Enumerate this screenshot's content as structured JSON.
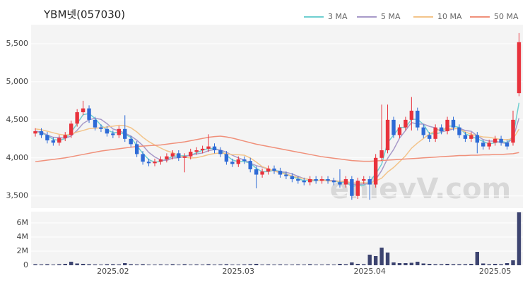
{
  "chart_data": [
    {
      "type": "candlestick",
      "title": "YBM넷(057030)",
      "watermark": "enievV.com",
      "up_color": "#e8323c",
      "down_color": "#2e6bd6",
      "grid": true,
      "ylim": [
        3340,
        5750
      ],
      "yticks": [
        {
          "value": 3500,
          "label": "3,500"
        },
        {
          "value": 4000,
          "label": "4,000"
        },
        {
          "value": 4500,
          "label": "4,500"
        },
        {
          "value": 5000,
          "label": "5,000"
        },
        {
          "value": 5500,
          "label": "5,500"
        }
      ],
      "open": [
        4320,
        4350,
        4300,
        4230,
        4200,
        4260,
        4300,
        4450,
        4600,
        4650,
        4500,
        4400,
        4380,
        4320,
        4300,
        4380,
        4250,
        4180,
        4050,
        3950,
        3930,
        3950,
        3980,
        4020,
        4060,
        4000,
        4020,
        4080,
        4100,
        4120,
        4150,
        4100,
        4050,
        3950,
        3920,
        3980,
        3960,
        3850,
        3780,
        3820,
        3860,
        3830,
        3780,
        3760,
        3720,
        3700,
        3680,
        3720,
        3700,
        3720,
        3700,
        3680,
        3650,
        3720,
        3500,
        3700,
        3720,
        3650,
        4000,
        4100,
        4500,
        4300,
        4400,
        4500,
        4620,
        4400,
        4300,
        4250,
        4400,
        4350,
        4500,
        4400,
        4300,
        4250,
        4300,
        4200,
        4150,
        4200,
        4250,
        4200,
        4200,
        4850
      ],
      "high": [
        4390,
        4390,
        4340,
        4270,
        4300,
        4340,
        4490,
        4640,
        4750,
        4690,
        4540,
        4440,
        4420,
        4360,
        4420,
        4560,
        4290,
        4220,
        4090,
        3990,
        3990,
        4020,
        4060,
        4100,
        4100,
        4060,
        4120,
        4140,
        4160,
        4310,
        4190,
        4140,
        4090,
        3990,
        4020,
        4020,
        4000,
        3890,
        3860,
        3900,
        3900,
        3870,
        3820,
        3800,
        3760,
        3740,
        3760,
        3760,
        3760,
        3760,
        3740,
        3850,
        3760,
        3760,
        3740,
        3760,
        3760,
        4050,
        4700,
        4700,
        4540,
        4440,
        4540,
        4800,
        4660,
        4440,
        4340,
        4440,
        4440,
        4540,
        4540,
        4440,
        4340,
        4340,
        4340,
        4240,
        4240,
        4290,
        4290,
        4240,
        4620,
        5640
      ],
      "low": [
        4280,
        4260,
        4190,
        4160,
        4160,
        4220,
        4260,
        4410,
        4560,
        4460,
        4360,
        4340,
        4280,
        4260,
        4260,
        4210,
        4140,
        4010,
        3910,
        3890,
        3890,
        3910,
        3940,
        3980,
        3960,
        3810,
        3980,
        4040,
        4060,
        4080,
        4060,
        4010,
        3910,
        3880,
        3880,
        3920,
        3810,
        3600,
        3740,
        3780,
        3790,
        3740,
        3720,
        3680,
        3660,
        3640,
        3640,
        3660,
        3660,
        3660,
        3640,
        3610,
        3610,
        3450,
        3460,
        3660,
        3450,
        3610,
        3960,
        4060,
        4260,
        4260,
        4360,
        4360,
        4360,
        4260,
        4210,
        4210,
        4310,
        4310,
        4360,
        4260,
        4210,
        4210,
        4060,
        4110,
        4110,
        4160,
        4160,
        4110,
        4160,
        4810
      ],
      "close": [
        4350,
        4300,
        4230,
        4200,
        4260,
        4300,
        4450,
        4600,
        4650,
        4500,
        4400,
        4380,
        4320,
        4300,
        4380,
        4250,
        4180,
        4050,
        3950,
        3930,
        3950,
        3980,
        4020,
        4060,
        4000,
        4020,
        4080,
        4100,
        4120,
        4150,
        4100,
        4050,
        3950,
        3920,
        3980,
        3960,
        3850,
        3780,
        3820,
        3860,
        3830,
        3780,
        3760,
        3720,
        3700,
        3680,
        3720,
        3700,
        3720,
        3700,
        3680,
        3650,
        3720,
        3500,
        3700,
        3720,
        3650,
        4000,
        4100,
        4500,
        4300,
        4400,
        4500,
        4620,
        4400,
        4300,
        4250,
        4400,
        4350,
        4500,
        4400,
        4300,
        4250,
        4300,
        4200,
        4150,
        4200,
        4250,
        4200,
        4150,
        4500,
        5520
      ],
      "series": [
        {
          "name": "3 MA",
          "color": "#6fcfd0",
          "values": [
            4350,
            4330,
            4293,
            4243,
            4230,
            4253,
            4337,
            4450,
            4567,
            4583,
            4517,
            4427,
            4367,
            4333,
            4333,
            4310,
            4270,
            4160,
            4060,
            3977,
            3943,
            3953,
            3983,
            4020,
            4027,
            4027,
            4033,
            4067,
            4100,
            4123,
            4123,
            4100,
            4033,
            3973,
            3950,
            3953,
            3930,
            3863,
            3817,
            3820,
            3837,
            3823,
            3790,
            3753,
            3727,
            3700,
            3700,
            3700,
            3713,
            3707,
            3700,
            3677,
            3683,
            3623,
            3640,
            3640,
            3690,
            3790,
            3917,
            4200,
            4300,
            4400,
            4400,
            4507,
            4507,
            4440,
            4317,
            4317,
            4333,
            4417,
            4417,
            4400,
            4317,
            4283,
            4250,
            4217,
            4183,
            4200,
            4217,
            4200,
            4283,
            4723
          ]
        },
        {
          "name": "5 MA",
          "color": "#a89ac9",
          "values": [
            4350,
            4340,
            4300,
            4270,
            4268,
            4258,
            4288,
            4362,
            4452,
            4500,
            4520,
            4506,
            4450,
            4380,
            4356,
            4326,
            4286,
            4232,
            4162,
            4072,
            4012,
            3972,
            3966,
            3998,
            4002,
            4016,
            4036,
            4052,
            4064,
            4094,
            4110,
            4104,
            4074,
            4034,
            4000,
            3972,
            3932,
            3898,
            3878,
            3854,
            3828,
            3818,
            3810,
            3790,
            3758,
            3728,
            3716,
            3704,
            3704,
            3704,
            3704,
            3690,
            3694,
            3650,
            3650,
            3658,
            3658,
            3714,
            3834,
            3994,
            4110,
            4260,
            4360,
            4464,
            4444,
            4444,
            4414,
            4394,
            4340,
            4360,
            4380,
            4390,
            4360,
            4350,
            4290,
            4240,
            4220,
            4220,
            4200,
            4190,
            4260,
            4522
          ]
        },
        {
          "name": "10 MA",
          "color": "#f3c48a",
          "values": [
            4380,
            4370,
            4350,
            4330,
            4310,
            4300,
            4310,
            4340,
            4360,
            4384,
            4389,
            4397,
            4406,
            4416,
            4428,
            4423,
            4396,
            4341,
            4271,
            4214,
            4169,
            4129,
            4093,
            4069,
            4031,
            4008,
            3998,
            4003,
            4020,
            4042,
            4057,
            4064,
            4057,
            4043,
            4041,
            4035,
            3999,
            3945,
            3885,
            3856,
            3829,
            3802,
            3786,
            3763,
            3741,
            3727,
            3714,
            3706,
            3705,
            3697,
            3695,
            3693,
            3693,
            3671,
            3671,
            3675,
            3668,
            3696,
            3734,
            3814,
            3874,
            3949,
            4027,
            4127,
            4196,
            4254,
            4314,
            4354,
            4379,
            4379,
            4389,
            4379,
            4342,
            4310,
            4290,
            4275,
            4270,
            4255,
            4240,
            4240,
            4250,
            4377
          ]
        },
        {
          "name": "50 MA",
          "color": "#f0907a",
          "values": [
            3950,
            3960,
            3970,
            3980,
            3990,
            4000,
            4015,
            4030,
            4045,
            4060,
            4075,
            4090,
            4100,
            4110,
            4120,
            4130,
            4140,
            4150,
            4155,
            4160,
            4165,
            4170,
            4180,
            4190,
            4200,
            4210,
            4225,
            4240,
            4255,
            4270,
            4280,
            4285,
            4275,
            4260,
            4240,
            4220,
            4200,
            4180,
            4165,
            4150,
            4135,
            4120,
            4105,
            4090,
            4075,
            4060,
            4045,
            4030,
            4015,
            4005,
            3995,
            3985,
            3975,
            3965,
            3960,
            3955,
            3955,
            3960,
            3965,
            3970,
            3975,
            3980,
            3985,
            3990,
            3995,
            4000,
            4005,
            4010,
            4015,
            4020,
            4025,
            4030,
            4030,
            4035,
            4035,
            4040,
            4040,
            4045,
            4045,
            4050,
            4055,
            4070
          ]
        }
      ]
    },
    {
      "type": "bar",
      "color": "#3d4470",
      "grid": true,
      "ylim": [
        0,
        7600000
      ],
      "yticks": [
        {
          "value": 0,
          "label": "0"
        },
        {
          "value": 2000000,
          "label": "2M"
        },
        {
          "value": 4000000,
          "label": "4M"
        },
        {
          "value": 6000000,
          "label": "6M"
        }
      ],
      "categories": [
        null,
        null,
        null,
        null,
        null,
        null,
        null,
        null,
        null,
        null,
        null,
        null,
        null,
        "2025.02",
        null,
        null,
        null,
        null,
        null,
        null,
        null,
        null,
        null,
        null,
        null,
        null,
        null,
        null,
        null,
        null,
        null,
        null,
        null,
        null,
        "2025.03",
        null,
        null,
        null,
        null,
        null,
        null,
        null,
        null,
        null,
        null,
        null,
        null,
        null,
        null,
        null,
        null,
        null,
        null,
        null,
        null,
        null,
        "2025.04",
        null,
        null,
        null,
        null,
        null,
        null,
        null,
        null,
        null,
        null,
        null,
        null,
        null,
        null,
        null,
        null,
        null,
        null,
        null,
        null,
        "2025.05",
        null,
        null,
        null,
        null
      ],
      "values": [
        150000,
        120000,
        150000,
        100000,
        150000,
        200000,
        500000,
        250000,
        200000,
        150000,
        120000,
        100000,
        150000,
        150000,
        120000,
        300000,
        150000,
        120000,
        150000,
        100000,
        100000,
        120000,
        100000,
        150000,
        100000,
        150000,
        100000,
        120000,
        100000,
        150000,
        100000,
        120000,
        150000,
        100000,
        100000,
        120000,
        150000,
        200000,
        100000,
        120000,
        100000,
        120000,
        100000,
        100000,
        120000,
        100000,
        150000,
        100000,
        100000,
        120000,
        100000,
        200000,
        150000,
        400000,
        200000,
        150000,
        1500000,
        1300000,
        2500000,
        1800000,
        400000,
        300000,
        300000,
        350000,
        500000,
        250000,
        200000,
        150000,
        150000,
        200000,
        150000,
        150000,
        150000,
        200000,
        1900000,
        250000,
        150000,
        200000,
        150000,
        300000,
        700000,
        7500000
      ]
    }
  ]
}
